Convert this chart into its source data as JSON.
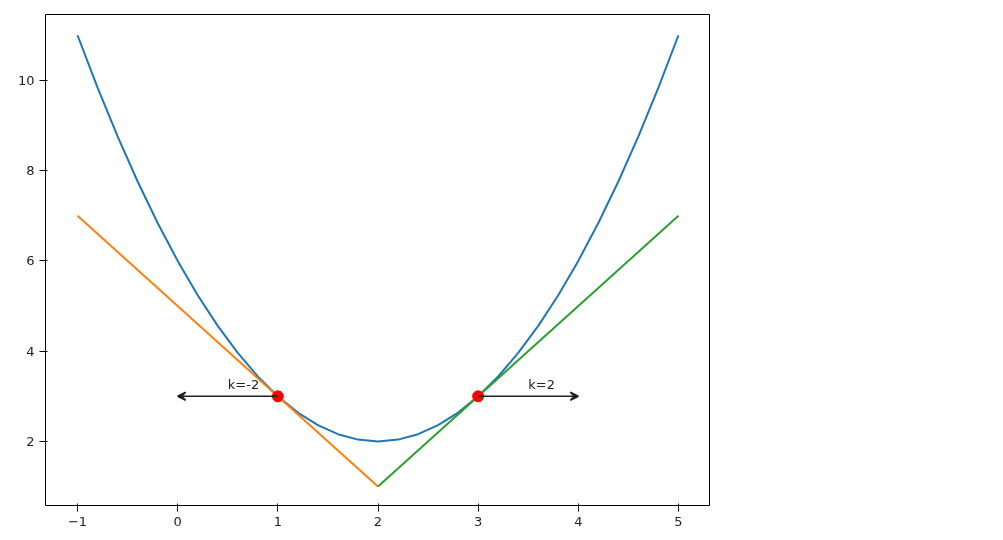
{
  "chart_data": {
    "type": "line",
    "series": [
      {
        "color": "#1f77b4",
        "x": [
          -1,
          -0.8,
          -0.6,
          -0.4,
          -0.2,
          0,
          0.2,
          0.4,
          0.6,
          0.8,
          1,
          1.2,
          1.4,
          1.6,
          1.8,
          2,
          2.2,
          2.4,
          2.6,
          2.8,
          3,
          3.2,
          3.4,
          3.6,
          3.8,
          4,
          4.2,
          4.4,
          4.6,
          4.8,
          5
        ],
        "values": [
          11,
          9.84,
          8.76,
          7.76,
          6.84,
          6,
          5.24,
          4.56,
          3.96,
          3.44,
          3,
          2.64,
          2.36,
          2.16,
          2.04,
          2,
          2.04,
          2.16,
          2.36,
          2.64,
          3,
          3.44,
          3.96,
          4.56,
          5.24,
          6,
          6.84,
          7.76,
          8.76,
          9.84,
          11
        ]
      },
      {
        "color": "#ff7f0e",
        "x": [
          -1,
          2
        ],
        "values": [
          7,
          1
        ]
      },
      {
        "color": "#2ca02c",
        "x": [
          2,
          5
        ],
        "values": [
          1,
          7
        ]
      },
      {
        "type": "scatter",
        "color": "#ff0000",
        "x": [
          1,
          3
        ],
        "values": [
          3,
          3
        ]
      }
    ],
    "annotations": [
      "k=-2",
      "k=2"
    ],
    "xlim": [
      -1.32,
      5.31
    ],
    "ylim": [
      0.58,
      11.46
    ],
    "xticks": [
      -1,
      0,
      1,
      2,
      3,
      4,
      5
    ],
    "yticks": [
      2,
      4,
      6,
      8,
      10
    ],
    "grid": false,
    "line_style": "solid"
  }
}
